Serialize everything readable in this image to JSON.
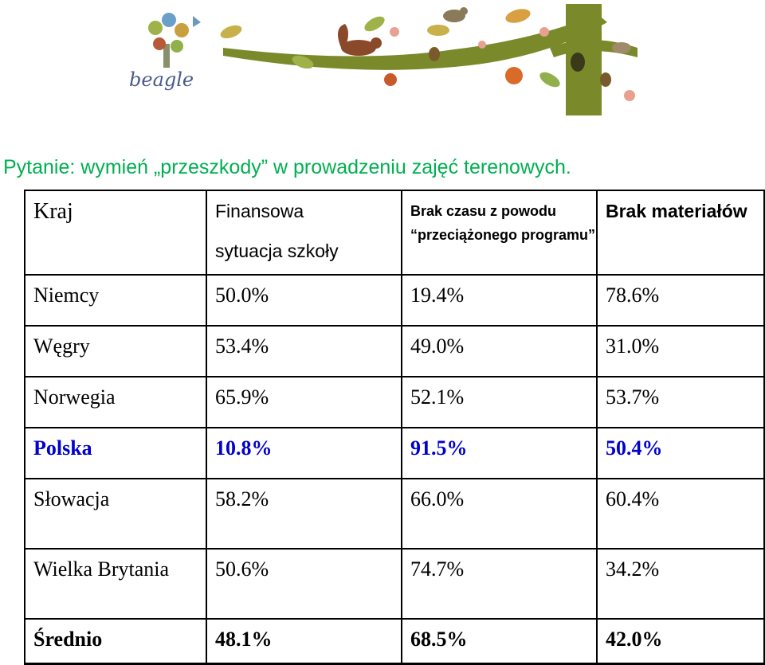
{
  "logo": {
    "text": "beagle"
  },
  "question": "Pytanie: wymień „przeszkody” w prowadzeniu zajęć terenowych.",
  "table": {
    "headers": {
      "kraj": "Kraj",
      "finansowa_1": "Finansowa",
      "finansowa_2": "sytuacja szkoły",
      "brak_czasu": "Brak czasu z powodu “przeciążonego programu”",
      "brak_materialow": "Brak materiałów"
    },
    "rows": [
      {
        "country": "Niemcy",
        "finansowa": "50.0%",
        "brak_czasu": "19.4%",
        "brak_materialow": "78.6%"
      },
      {
        "country": "Węgry",
        "finansowa": "53.4%",
        "brak_czasu": "49.0%",
        "brak_materialow": "31.0%"
      },
      {
        "country": "Norwegia",
        "finansowa": "65.9%",
        "brak_czasu": "52.1%",
        "brak_materialow": "53.7%"
      },
      {
        "country": "Polska",
        "finansowa": "10.8%",
        "brak_czasu": "91.5%",
        "brak_materialow": "50.4%"
      },
      {
        "country": "Słowacja",
        "finansowa": "58.2%",
        "brak_czasu": "66.0%",
        "brak_materialow": "60.4%"
      },
      {
        "country": "Wielka Brytania",
        "finansowa": "50.6%",
        "brak_czasu": "74.7%",
        "brak_materialow": "34.2%"
      },
      {
        "country": "Średnio",
        "finansowa": "48.1%",
        "brak_czasu": "68.5%",
        "brak_materialow": "42.0%"
      }
    ]
  },
  "colors": {
    "question": "#00b050",
    "highlight_row": "#0000cc",
    "branch": "#7a8a2a",
    "logo_text": "#4a5a8a"
  }
}
